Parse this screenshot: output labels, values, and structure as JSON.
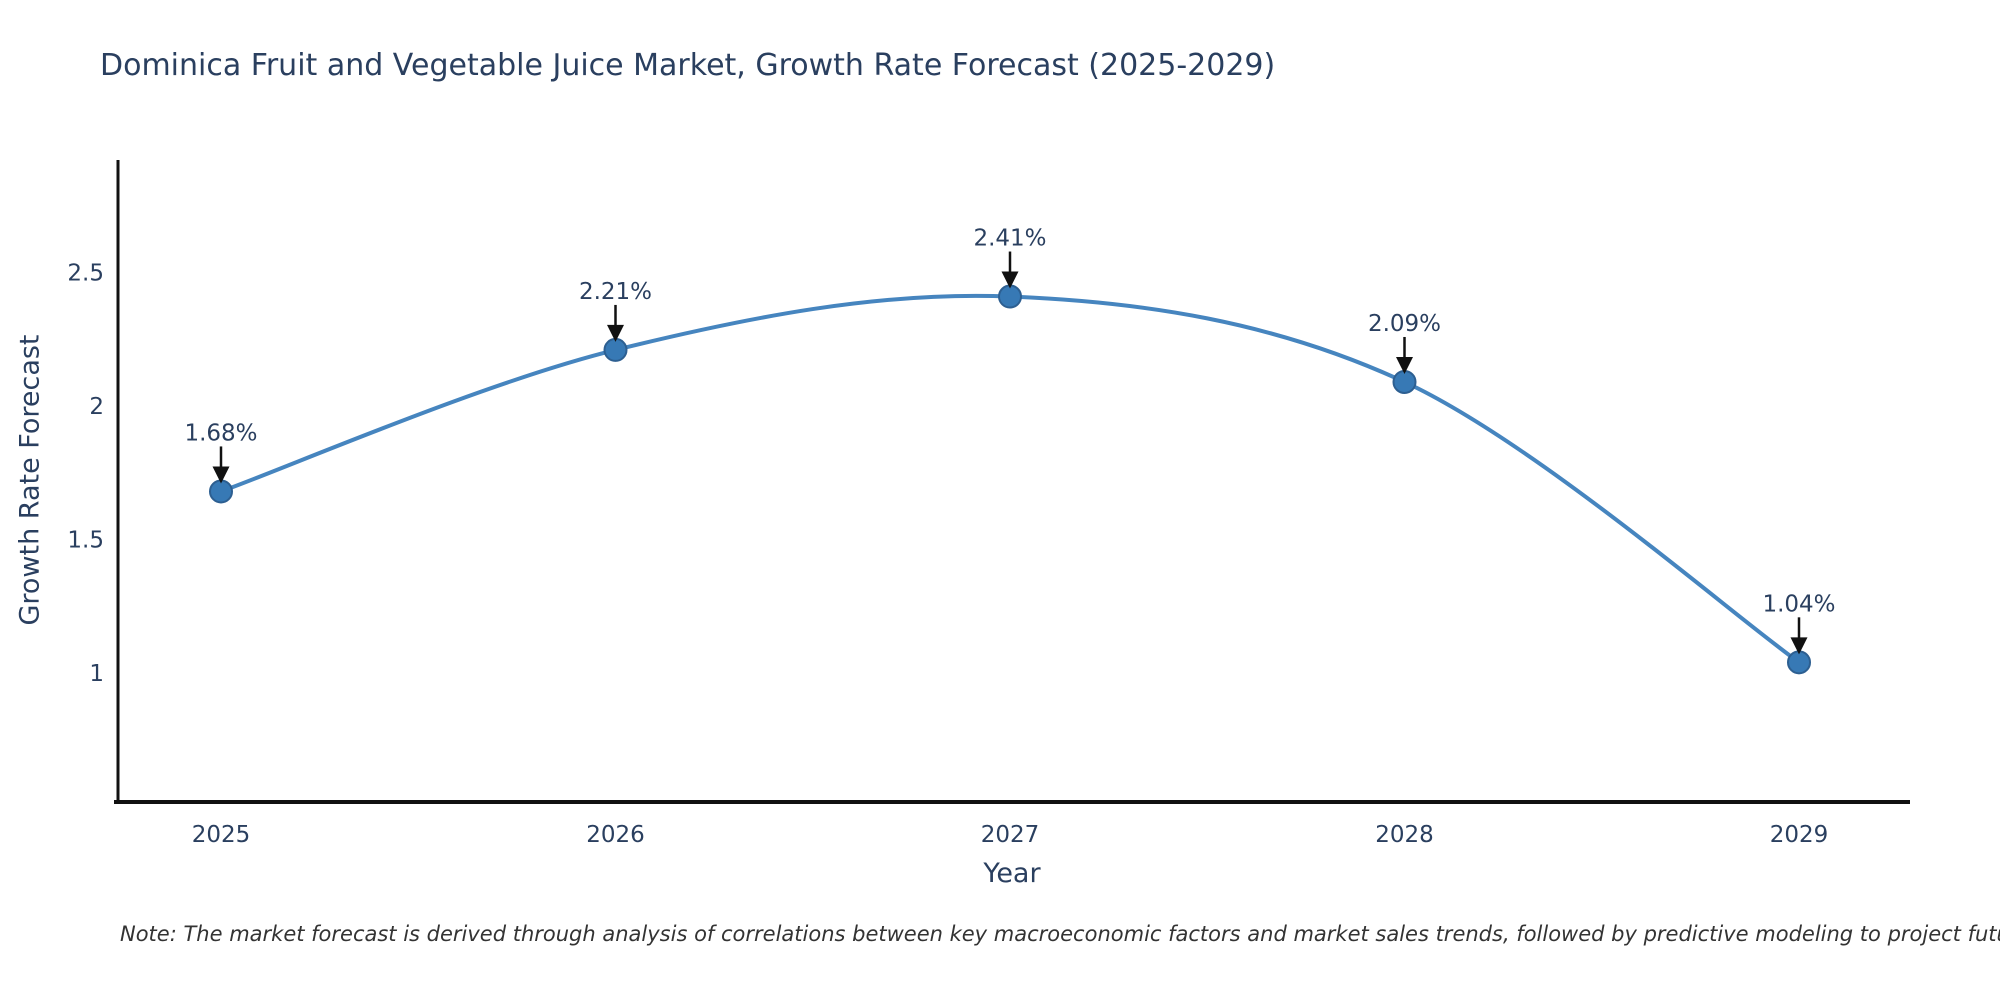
{
  "title": "Dominica Fruit and Vegetable Juice Market, Growth Rate Forecast (2025-2029)",
  "note": "Note: The market forecast is derived through analysis of correlations between key macroeconomic factors and market sales trends, followed by predictive modeling to project future sales",
  "chart_data": {
    "type": "line",
    "line_shape": "spline",
    "title": "Dominica Fruit and Vegetable Juice Market, Growth Rate Forecast (2025-2029)",
    "xlabel": "Year",
    "ylabel": "Growth Rate Forecast",
    "x": [
      2025,
      2026,
      2027,
      2028,
      2029
    ],
    "series": [
      {
        "name": "Growth Rate Forecast",
        "values": [
          1.68,
          2.21,
          2.41,
          2.09,
          1.04
        ]
      }
    ],
    "point_labels": [
      "1.68%",
      "2.21%",
      "2.41%",
      "2.09%",
      "1.04%"
    ],
    "xtick_labels": [
      "2025",
      "2026",
      "2027",
      "2028",
      "2029"
    ],
    "ytick_values": [
      1,
      1.5,
      2,
      2.5
    ],
    "ytick_labels": [
      "1",
      "1.5",
      "2",
      "2.5"
    ],
    "ylim": [
      0.52,
      2.92
    ],
    "grid": false,
    "legend": "none",
    "colors": {
      "line": "#4685bf",
      "marker": "#3779b5",
      "marker_edge": "#2d5f91",
      "axis": "#111111",
      "arrow": "#111111",
      "text": "#2a3f5f",
      "note_text": "#333333",
      "title_text": "#2a3f5f"
    }
  }
}
